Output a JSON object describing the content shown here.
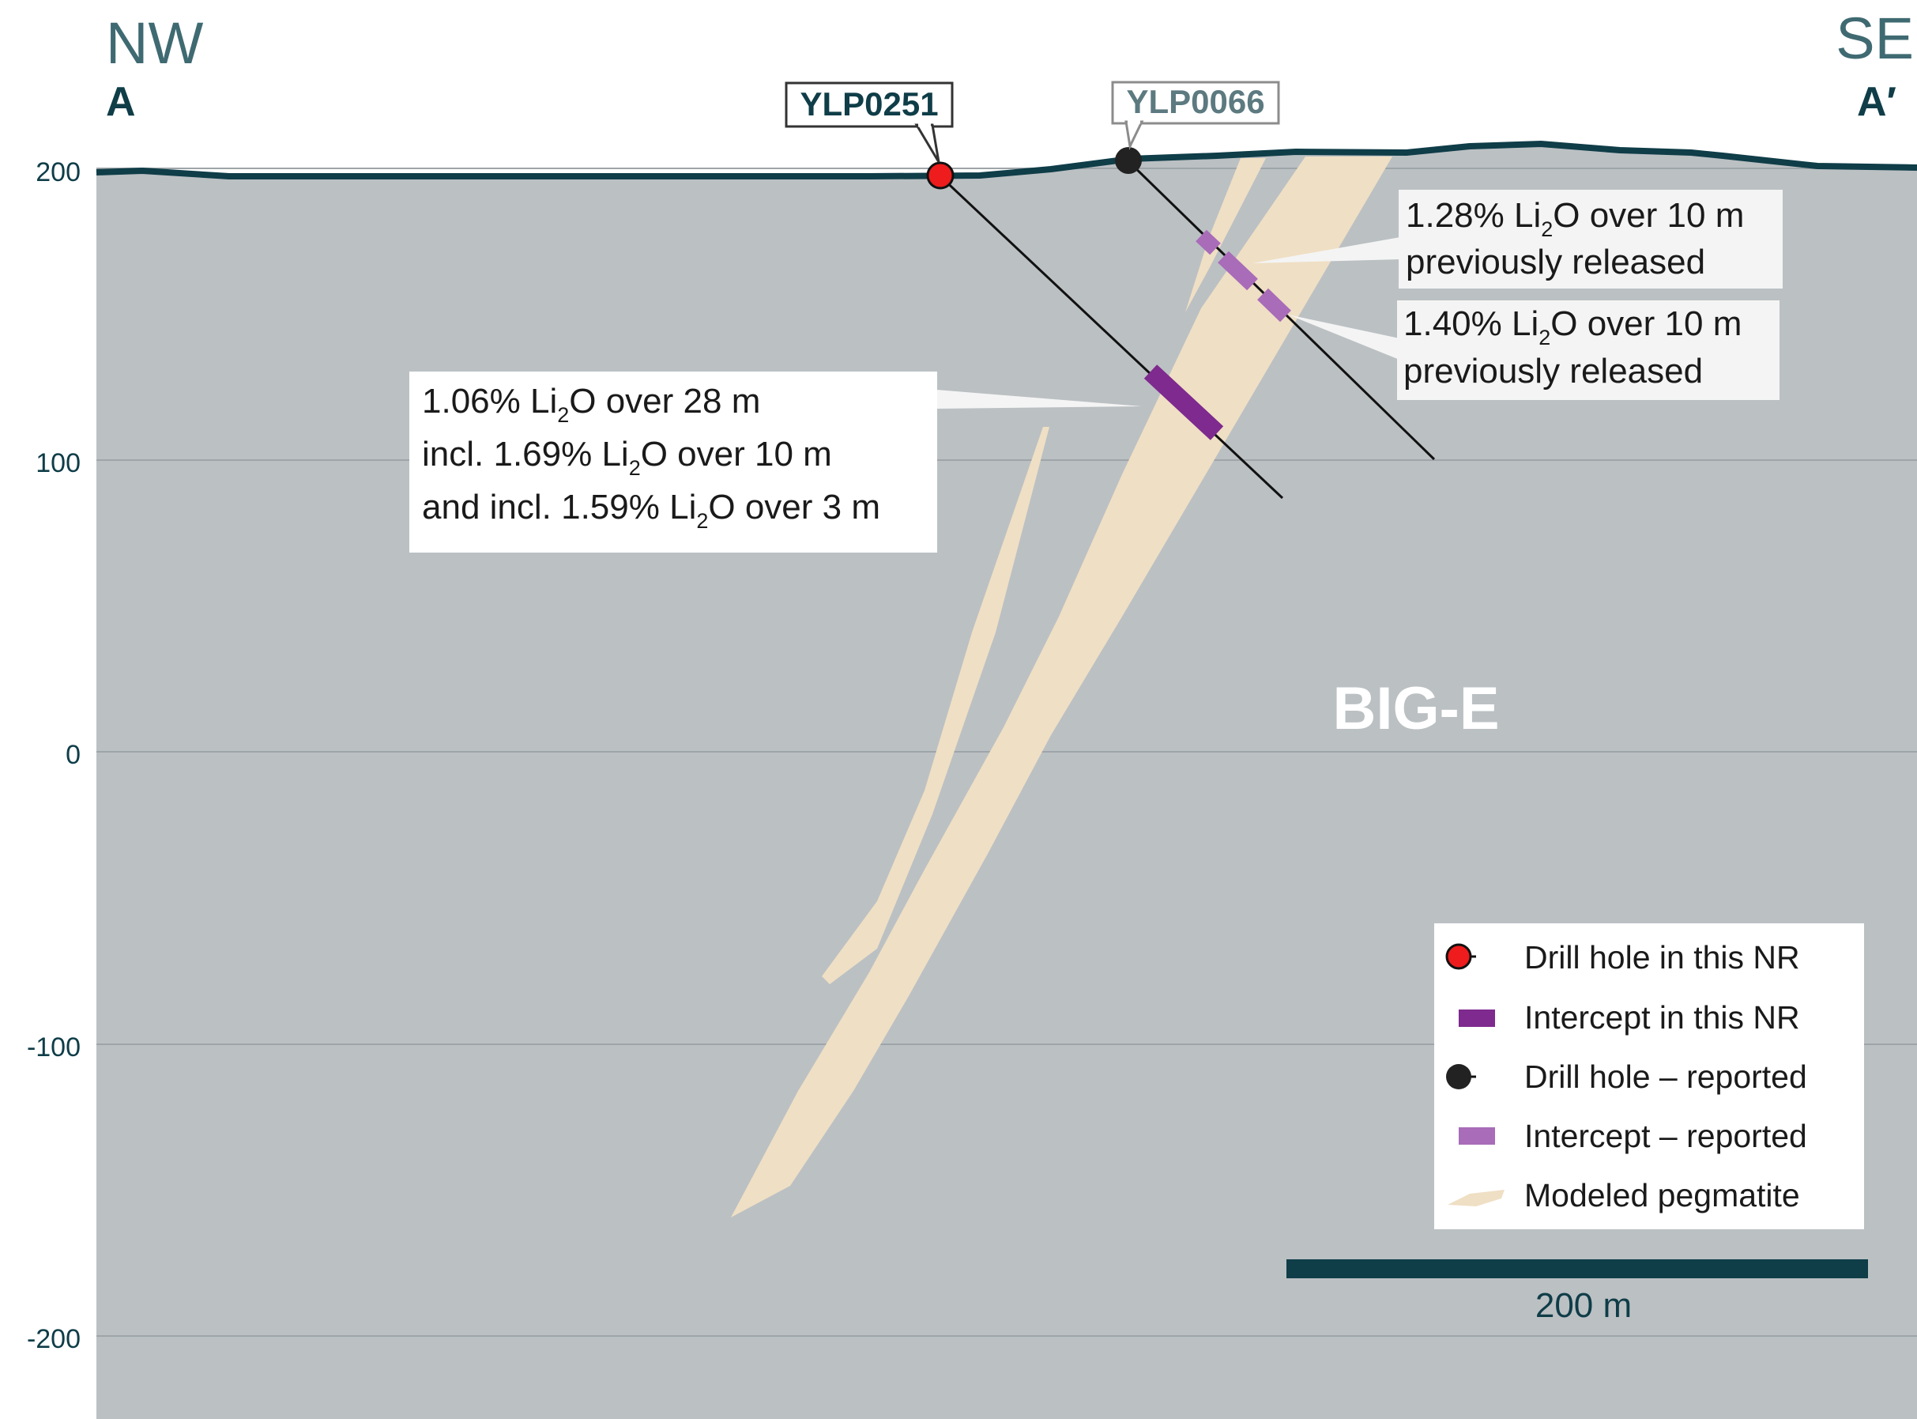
{
  "section": {
    "left_direction": "NW",
    "left_label": "A",
    "right_direction": "SE",
    "right_label": "A′",
    "zone_label": "BIG-E"
  },
  "chart_data": {
    "type": "cross-section",
    "y_axis": {
      "unit": "m",
      "ticks": [
        200,
        100,
        0,
        -100,
        -200
      ]
    }
  },
  "drill_holes": [
    {
      "id": "YLP0251",
      "status": "this NR"
    },
    {
      "id": "YLP0066",
      "status": "reported"
    }
  ],
  "annotations": {
    "ylp0251": {
      "l1_a": "1.06% Li",
      "l1_b": "O over 28 m",
      "l2_a": "incl. 1.69% Li",
      "l2_b": "O over 10 m",
      "l3_a": "and incl. 1.59% Li",
      "l3_b": "O over 3 m",
      "sub": "2"
    },
    "ylp0066_upper": {
      "l1_a": "1.28% Li",
      "l1_b": "O over 10 m",
      "l2": "previously released",
      "sub": "2"
    },
    "ylp0066_lower": {
      "l1_a": "1.40% Li",
      "l1_b": "O over 10 m",
      "l2": "previously released",
      "sub": "2"
    }
  },
  "legend": {
    "items": [
      {
        "label": "Drill hole in this NR",
        "icon": "red-collar-icon"
      },
      {
        "label": "Intercept in this NR",
        "icon": "dark-purple-bar-icon"
      },
      {
        "label": "Drill hole – reported",
        "icon": "black-collar-icon"
      },
      {
        "label": "Intercept – reported",
        "icon": "light-purple-bar-icon"
      },
      {
        "label": "Modeled pegmatite",
        "icon": "pegmatite-swatch-icon"
      }
    ]
  },
  "scale_bar": {
    "label": "200 m"
  },
  "colors": {
    "background_rock": "#bbc0c3",
    "topography": "#0f3d48",
    "pegmatite": "#efdfc4",
    "intercept_new": "#7e2a8e",
    "intercept_reported": "#a86cb8",
    "collar_new": "#ee1c1c",
    "collar_reported": "#222222"
  }
}
